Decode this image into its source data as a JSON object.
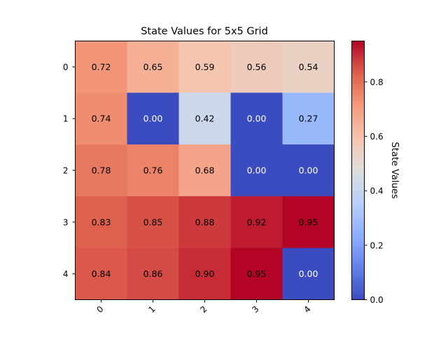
{
  "chart_data": {
    "type": "heatmap",
    "title": "State Values for 5x5 Grid",
    "xlabel": "",
    "ylabel": "",
    "x_tick_labels": [
      "0",
      "1",
      "2",
      "3",
      "4"
    ],
    "y_tick_labels": [
      "0",
      "1",
      "2",
      "3",
      "4"
    ],
    "values": [
      [
        0.72,
        0.65,
        0.59,
        0.56,
        0.54
      ],
      [
        0.74,
        0.0,
        0.42,
        0.0,
        0.27
      ],
      [
        0.78,
        0.76,
        0.68,
        0.0,
        0.0
      ],
      [
        0.83,
        0.85,
        0.88,
        0.92,
        0.95
      ],
      [
        0.84,
        0.86,
        0.9,
        0.95,
        0.0
      ]
    ],
    "cell_labels": [
      [
        "0.72",
        "0.65",
        "0.59",
        "0.56",
        "0.54"
      ],
      [
        "0.74",
        "0.00",
        "0.42",
        "0.00",
        "0.27"
      ],
      [
        "0.78",
        "0.76",
        "0.68",
        "0.00",
        "0.00"
      ],
      [
        "0.83",
        "0.85",
        "0.88",
        "0.92",
        "0.95"
      ],
      [
        "0.84",
        "0.86",
        "0.90",
        "0.95",
        "0.00"
      ]
    ],
    "colormap": "coolwarm",
    "color_range": [
      0.0,
      0.95
    ],
    "colorbar": {
      "label": "State Values",
      "ticks": [
        "0.0",
        "0.2",
        "0.4",
        "0.6",
        "0.8"
      ],
      "tick_values": [
        0.0,
        0.2,
        0.4,
        0.6,
        0.8
      ]
    },
    "grid": false,
    "x_tick_rotation": 45
  }
}
